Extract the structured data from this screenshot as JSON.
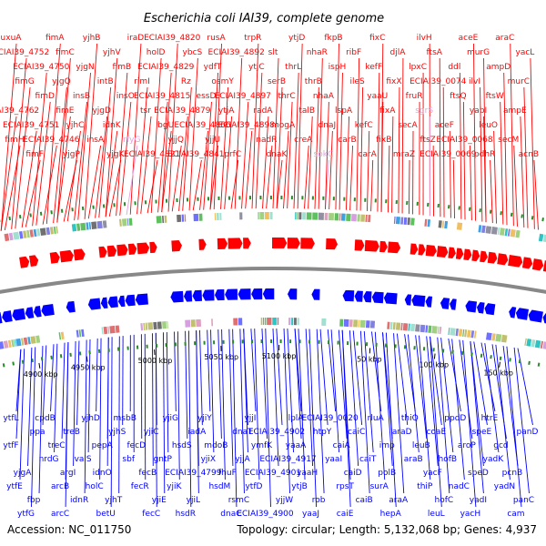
{
  "title": "Escherichia coli IAI39, complete genome",
  "footer": {
    "accession": "Accession: NC_011750",
    "summary": "Topology: circular; Length: 5,132,068 bp; Genes: 4,937"
  },
  "colors": {
    "forward": "#ff0000",
    "reverse": "#0000ff",
    "pseudo": "#e8a0e0",
    "backbone": "#888888",
    "tick_mark": "#2a8a2a"
  },
  "ticks": [
    {
      "label": "4900 kbp"
    },
    {
      "label": "4950 kbp"
    },
    {
      "label": "5000 kbp"
    },
    {
      "label": "5050 kbp"
    },
    {
      "label": "5100 kbp"
    },
    {
      "label": "50 kbp"
    },
    {
      "label": "100 kbp"
    },
    {
      "label": "150 kbp"
    }
  ],
  "top_labels": [
    "uxuA",
    "fimH",
    "ECIAI39_4762",
    "fimG",
    "ECIAI39_4752",
    "fimF",
    "ECIAI39_4751",
    "fimD",
    "ECIAI39_4750",
    "fimA",
    "ECIAI39_4746",
    "fimE",
    "yjgQ",
    "fimC",
    "yjgP",
    "yjhC",
    "insB",
    "yjgN",
    "yjhB",
    "insA",
    "yjgD",
    "intB",
    "yjhV",
    "yjgK",
    "idnK",
    "insO",
    "fimB",
    "iraD",
    "rfyG",
    "tsr",
    "rimI",
    "holD",
    "ECIAI39_4821",
    "bgU",
    "ECIAI39_4815",
    "ECIAI39_4829",
    "ECIAI39_4820",
    "yjjQ",
    "ECIAI39_4879",
    "Rz",
    "ybcS",
    "ECIAI39_4841",
    "ECIAI39_4866",
    "essD",
    "ydfT",
    "rusA",
    "yjjU",
    "ytjA",
    "osmY",
    "ECIAI39_4892",
    "prfC",
    "ECIAI39_4898",
    "ECIAI39_4897",
    "ytjC",
    "trpR",
    "nadR",
    "radA",
    "serB",
    "slt",
    "dnaK",
    "mogA",
    "thrC",
    "thrL",
    "ytjD",
    "creA",
    "talB",
    "thrB",
    "nhaR",
    "sokC",
    "dnaJ",
    "nhaA",
    "ispH",
    "fkpB",
    "carB",
    "lspA",
    "ileS",
    "ribF",
    "carA",
    "kefC",
    "yaaU",
    "kefF",
    "fixC",
    "fixB",
    "fixA",
    "fixX",
    "djlA",
    "mraZ",
    "secA",
    "fruR",
    "lpxC",
    "ilvH",
    "ftsZ",
    "sgrS",
    "ECIAI39_0074",
    "ftsA",
    "ECIAI39_0069",
    "aceF",
    "ftsQ",
    "ddl",
    "aceE",
    "ECIAI39_0068",
    "yabI",
    "ilvI",
    "murG",
    "pdhR",
    "leuO",
    "ftsW",
    "ampD",
    "araC",
    "secM",
    "ampE",
    "murC",
    "yacL",
    "acnB"
  ],
  "pseudo_labels": [
    "rfyG",
    "sokC",
    "sgrS"
  ],
  "bottom_labels": [
    "ytfL",
    "ytfE",
    "ytfF",
    "ytfG",
    "yjgA",
    "ppa",
    "fbp",
    "nrdG",
    "cpdB",
    "arcB",
    "treC",
    "arcC",
    "argI",
    "treB",
    "idnR",
    "valS",
    "yjhD",
    "holC",
    "pepA",
    "betU",
    "idnO",
    "yjhS",
    "yjhT",
    "sbf",
    "msbB",
    "fecR",
    "fecD",
    "fecC",
    "fecB",
    "yjiC",
    "yjiE",
    "gntP",
    "yjiG",
    "yjiK",
    "hsdS",
    "hsdR",
    "ECIAI39_4799",
    "iadA",
    "yjiL",
    "yjiX",
    "yjiY",
    "hsdM",
    "mdoB",
    "dnaC",
    "fhuF",
    "dnaT",
    "rsmC",
    "yjjA",
    "yjjI",
    "ytfD",
    "ymfK",
    "ECIAI39_4900",
    "ECIAI39_4901",
    "ECIAI39_4902",
    "yjjW",
    "ECIAI39_4917",
    "lplA",
    "ytjB",
    "yaaA",
    "yaaJ",
    "yaaH",
    "htpY",
    "rob",
    "yaaI",
    "ECIAI39_0020",
    "rpsT",
    "caiA",
    "caiE",
    "caiD",
    "caiC",
    "caiB",
    "caiT",
    "rluA",
    "surA",
    "imp",
    "hepA",
    "polB",
    "araD",
    "araA",
    "araB",
    "thiQ",
    "thiP",
    "leuB",
    "leuL",
    "yacF",
    "coaE",
    "hofC",
    "hofB",
    "ppdD",
    "nadC",
    "aroP",
    "yacH",
    "speD",
    "speE",
    "yadI",
    "yadK",
    "htrE",
    "yadN",
    "gcd",
    "cam",
    "pcnB",
    "panD",
    "panC"
  ]
}
